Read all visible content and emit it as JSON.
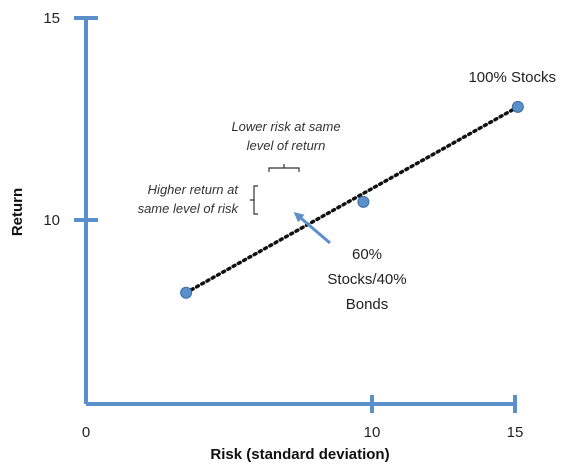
{
  "chart_data": {
    "type": "scatter",
    "xlabel": "Risk (standard deviation)",
    "ylabel": "Return",
    "xlim": [
      0,
      15
    ],
    "ylim": [
      6,
      15
    ],
    "x_ticks": [
      {
        "value": 0,
        "label": "0"
      },
      {
        "value": 10,
        "label": "10"
      },
      {
        "value": 15,
        "label": "15"
      }
    ],
    "y_ticks": [
      {
        "value": 10,
        "label": "10"
      },
      {
        "value": 15,
        "label": "15"
      }
    ],
    "grid": false,
    "colors": {
      "axis": "#5b8fc9",
      "point": "#5b8fc9",
      "line": "#111111"
    },
    "efficient_line": {
      "style": "dotted",
      "points": [
        {
          "x": 3.5,
          "y": 8.2
        },
        {
          "x": 15.1,
          "y": 12.8
        }
      ]
    },
    "points": [
      {
        "name": "low",
        "x": 3.5,
        "y": 8.2,
        "label": []
      },
      {
        "name": "100-stocks",
        "x": 15.1,
        "y": 12.8,
        "label": [
          "100% Stocks"
        ]
      },
      {
        "name": "60-40",
        "x": 9.7,
        "y": 10.45,
        "label": [
          "60%",
          "Stocks/40%",
          "Bonds"
        ]
      }
    ],
    "annotations": {
      "lower_risk": [
        "Lower risk at same",
        "level of return"
      ],
      "higher_return": [
        "Higher return at",
        "same level of risk"
      ]
    }
  }
}
